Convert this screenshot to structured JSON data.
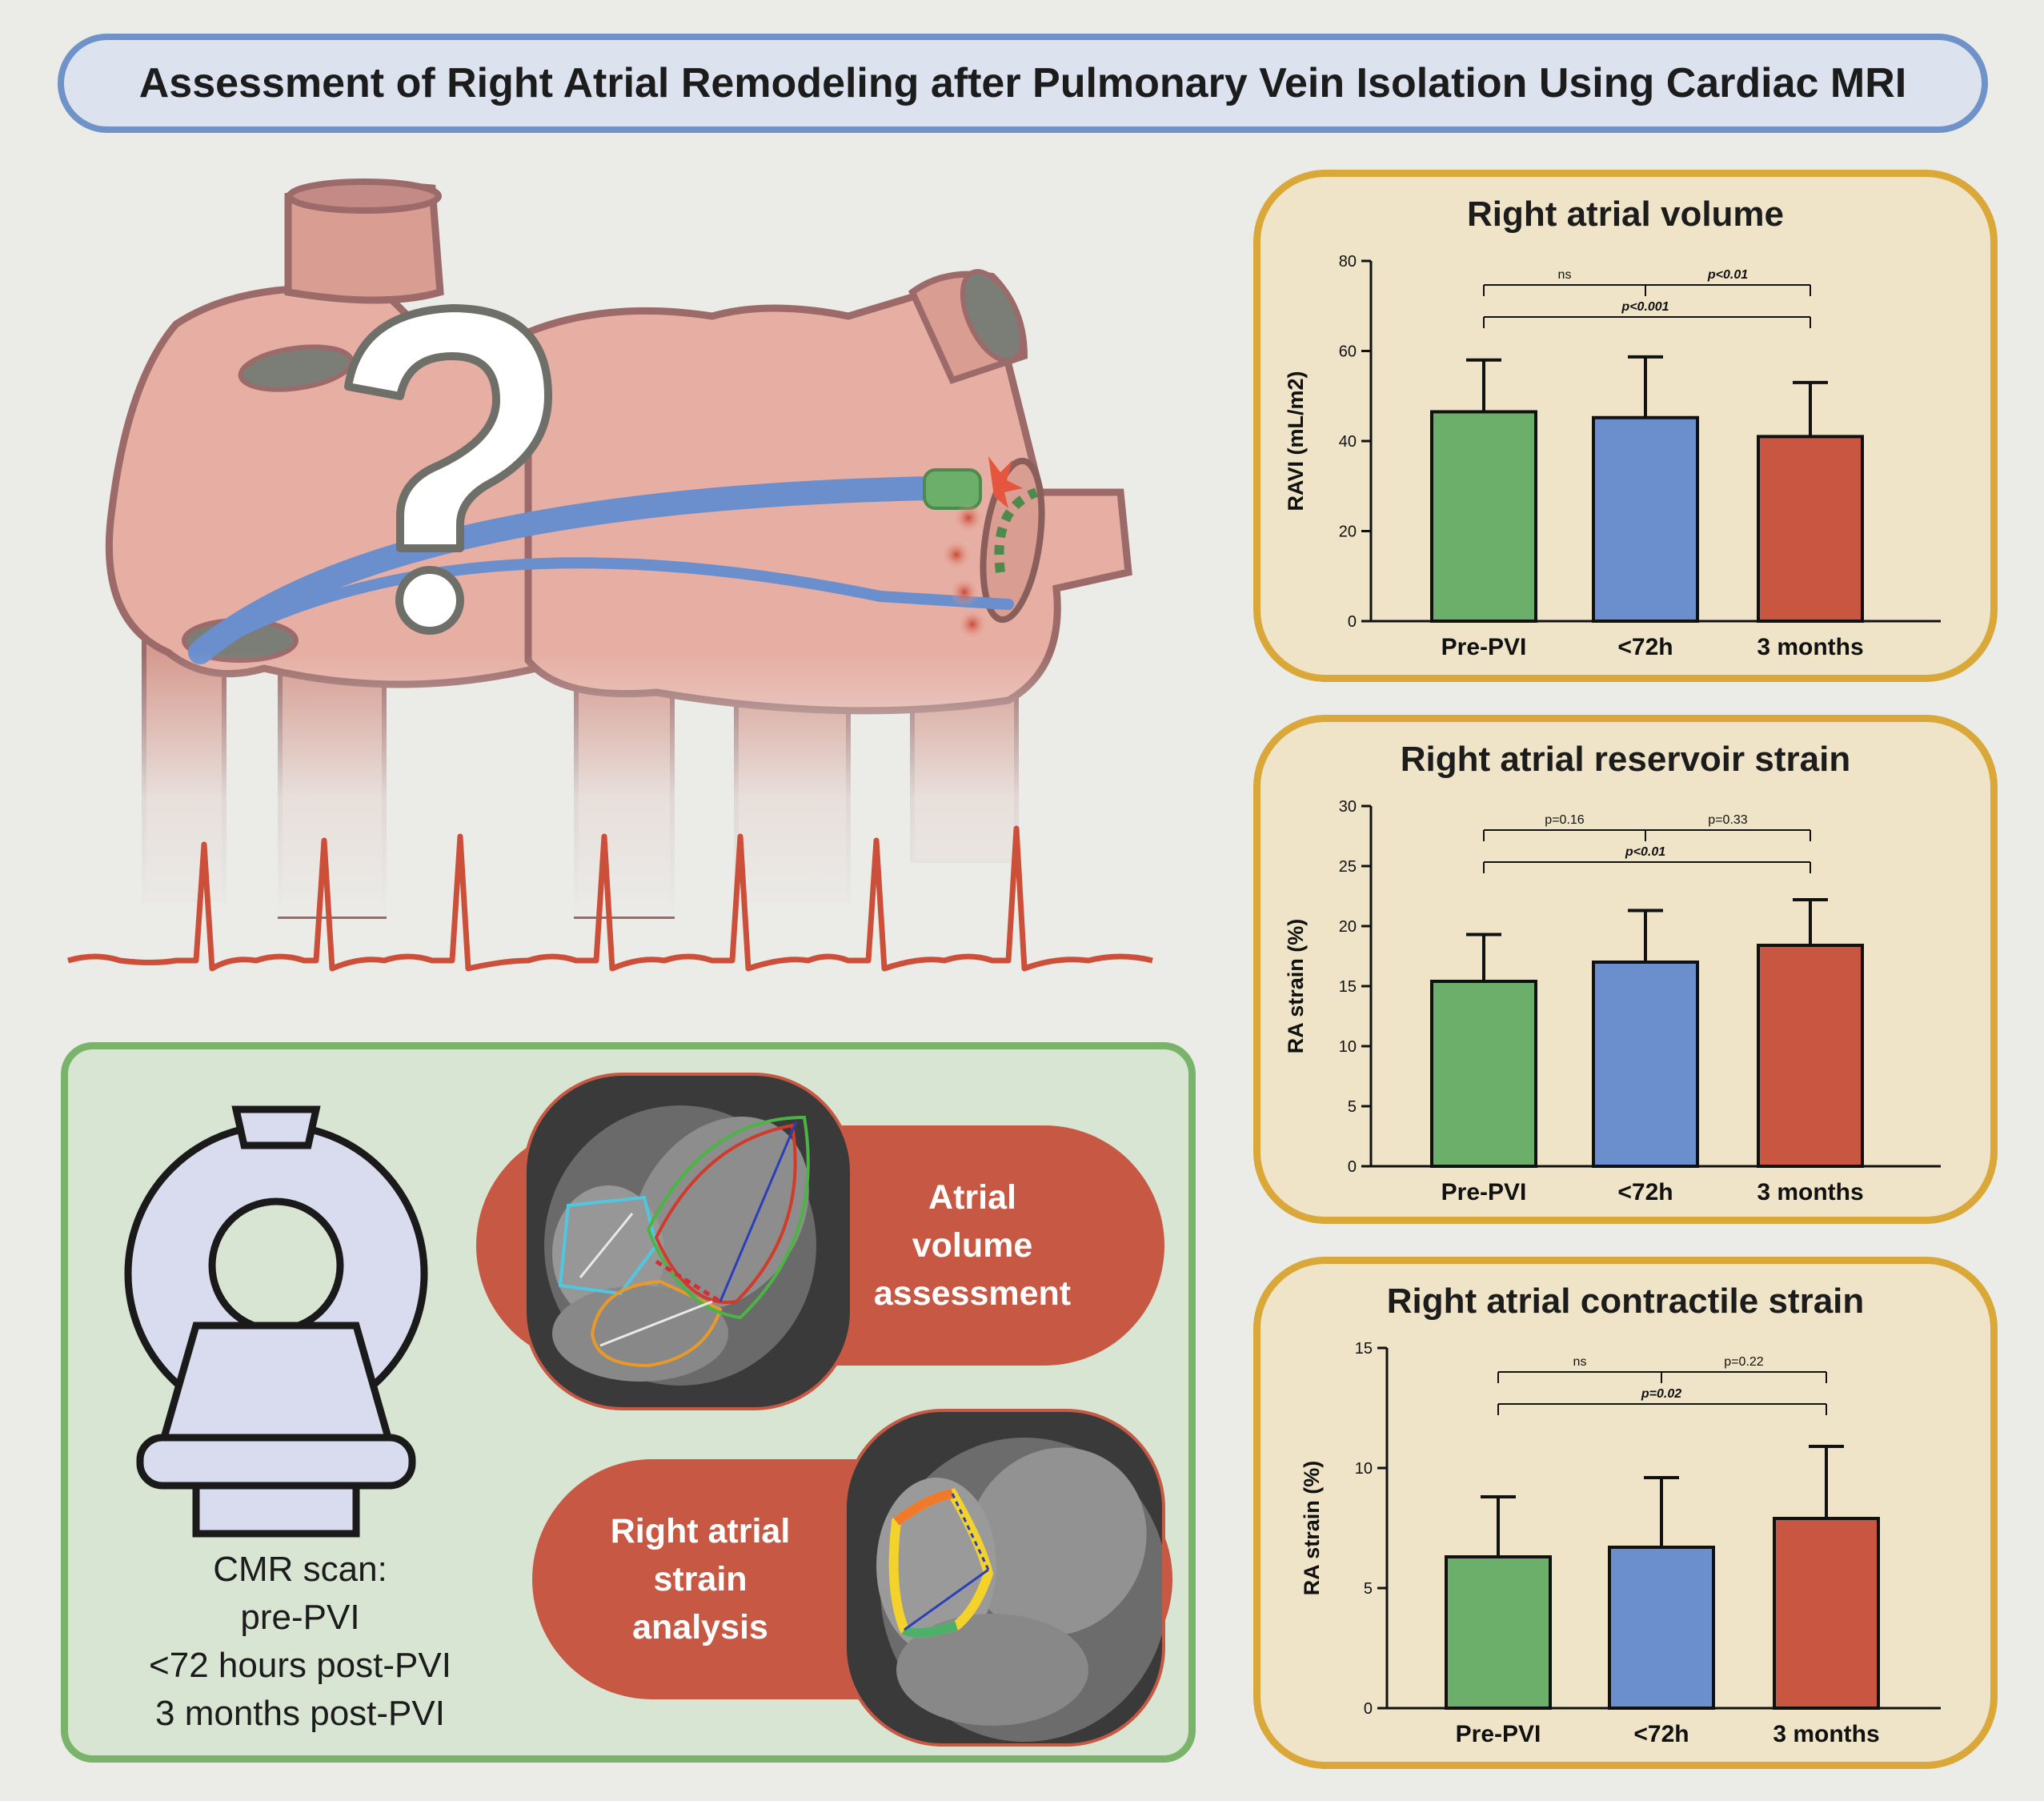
{
  "title": "Assessment of Right Atrial Remodeling after Pulmonary Vein Isolation Using Cardiac MRI",
  "cmr": {
    "scan_lines": [
      "CMR scan:",
      "pre-PVI",
      "<72 hours post-PVI",
      "3 months post-PVI"
    ],
    "volume_label": [
      "Atrial",
      "volume",
      "assessment"
    ],
    "strain_label": [
      "Right atrial",
      "strain",
      "analysis"
    ]
  },
  "colors": {
    "green": "#6caf6b",
    "blue": "#6b8fcc",
    "red": "#c95640",
    "panel_gold": "#d9a838",
    "ecg": "#cc4f3a"
  },
  "chart_data": [
    {
      "type": "bar",
      "title": "Right atrial volume",
      "ylabel": "RAVI (mL/m2)",
      "categories": [
        "Pre-PVI",
        "<72h",
        "3 months"
      ],
      "values": [
        46.5,
        45.2,
        41
      ],
      "errors": [
        11.5,
        13.5,
        12
      ],
      "ylim": [
        0,
        80
      ],
      "yticks": [
        0,
        20,
        40,
        60,
        80
      ],
      "brackets": [
        {
          "from": 0,
          "to": 1,
          "label": "ns",
          "bold": false
        },
        {
          "from": 1,
          "to": 2,
          "label": "p<0.01",
          "bold": true
        },
        {
          "from": 0,
          "to": 2,
          "label": "p<0.001",
          "bold": true
        }
      ]
    },
    {
      "type": "bar",
      "title": "Right atrial reservoir strain",
      "ylabel": "RA strain (%)",
      "categories": [
        "Pre-PVI",
        "<72h",
        "3 months"
      ],
      "values": [
        15.4,
        17,
        18.4
      ],
      "errors": [
        3.9,
        4.3,
        3.8
      ],
      "ylim": [
        0,
        30
      ],
      "yticks": [
        0,
        5,
        10,
        15,
        20,
        25,
        30
      ],
      "brackets": [
        {
          "from": 0,
          "to": 1,
          "label": "p=0.16",
          "bold": false
        },
        {
          "from": 1,
          "to": 2,
          "label": "p=0.33",
          "bold": false
        },
        {
          "from": 0,
          "to": 2,
          "label": "p<0.01",
          "bold": true
        }
      ]
    },
    {
      "type": "bar",
      "title": "Right atrial contractile strain",
      "ylabel": "RA strain (%)",
      "categories": [
        "Pre-PVI",
        "<72h",
        "3 months"
      ],
      "values": [
        6.3,
        6.7,
        7.9
      ],
      "errors": [
        2.5,
        2.9,
        3.0
      ],
      "ylim": [
        0,
        15
      ],
      "yticks": [
        0,
        5,
        10,
        15
      ],
      "brackets": [
        {
          "from": 0,
          "to": 1,
          "label": "ns",
          "bold": false
        },
        {
          "from": 1,
          "to": 2,
          "label": "p=0.22",
          "bold": false
        },
        {
          "from": 0,
          "to": 2,
          "label": "p=0.02",
          "bold": true
        }
      ]
    }
  ]
}
